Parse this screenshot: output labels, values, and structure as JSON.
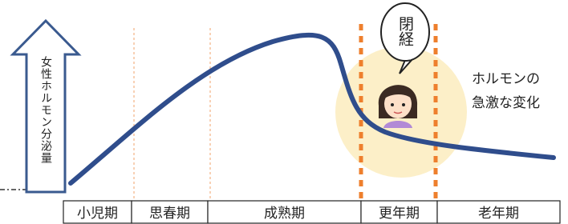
{
  "y_axis_label": "女性ホルモン分泌量",
  "stages": [
    "小児期",
    "思春期",
    "成熟期",
    "更年期",
    "老年期"
  ],
  "bubble": "閉経",
  "annotation": [
    "ホルモンの",
    "急激な変化"
  ]
}
